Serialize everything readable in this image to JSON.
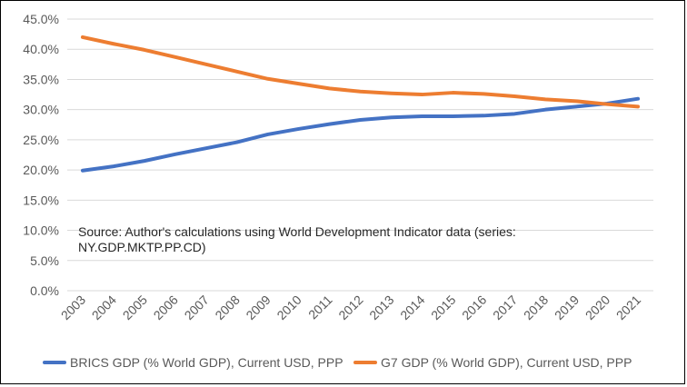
{
  "chart_data": {
    "type": "line",
    "x": [
      "2003",
      "2004",
      "2005",
      "2006",
      "2007",
      "2008",
      "2009",
      "2010",
      "2011",
      "2012",
      "2013",
      "2014",
      "2015",
      "2016",
      "2017",
      "2018",
      "2019",
      "2020",
      "2021"
    ],
    "ylim": [
      0,
      45
    ],
    "yticks": [
      "0.0%",
      "5.0%",
      "10.0%",
      "15.0%",
      "20.0%",
      "25.0%",
      "30.0%",
      "35.0%",
      "40.0%",
      "45.0%"
    ],
    "grid": true,
    "legend_position": "bottom",
    "series": [
      {
        "name": "BRICS GDP (% World GDP), Current USD, PPP",
        "color": "#4472C4",
        "values": [
          19.9,
          20.6,
          21.5,
          22.6,
          23.6,
          24.6,
          25.9,
          26.8,
          27.6,
          28.3,
          28.7,
          28.9,
          28.9,
          29.0,
          29.3,
          30.0,
          30.5,
          31.0,
          31.8
        ]
      },
      {
        "name": "G7 GDP (% World GDP), Current USD, PPP",
        "color": "#ED7D31",
        "values": [
          42.0,
          40.9,
          39.9,
          38.7,
          37.5,
          36.3,
          35.1,
          34.3,
          33.5,
          33.0,
          32.7,
          32.5,
          32.8,
          32.6,
          32.2,
          31.7,
          31.4,
          30.9,
          30.5
        ]
      }
    ],
    "annotation_lines": [
      "Source: Author's calculations using World Development Indicator data (series:",
      "NY.GDP.MKTP.PP.CD)"
    ]
  }
}
